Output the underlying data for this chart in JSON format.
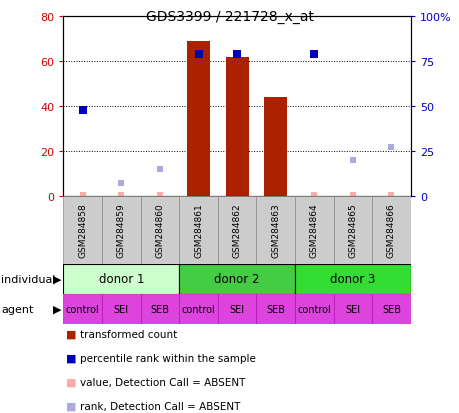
{
  "title": "GDS3399 / 221728_x_at",
  "samples": [
    "GSM284858",
    "GSM284859",
    "GSM284860",
    "GSM284861",
    "GSM284862",
    "GSM284863",
    "GSM284864",
    "GSM284865",
    "GSM284866"
  ],
  "bar_values": [
    0,
    0,
    0,
    69,
    62,
    44,
    0,
    0,
    0
  ],
  "bar_color": "#aa2200",
  "blue_values": [
    48,
    null,
    null,
    79,
    79,
    null,
    79,
    null,
    null
  ],
  "blue_color": "#0000bb",
  "pink_values": [
    0.5,
    0.5,
    0.5,
    null,
    null,
    null,
    0.5,
    0.5,
    0.5
  ],
  "pink_color": "#ffaaaa",
  "light_blue_values": [
    null,
    7,
    15,
    null,
    null,
    null,
    null,
    20,
    27
  ],
  "light_blue_color": "#aaaadd",
  "ylim_left": [
    0,
    80
  ],
  "ylim_right": [
    0,
    100
  ],
  "yticks_left": [
    0,
    20,
    40,
    60,
    80
  ],
  "yticks_right": [
    0,
    25,
    50,
    75,
    100
  ],
  "left_tick_labels": [
    "0",
    "20",
    "40",
    "60",
    "80"
  ],
  "right_tick_labels": [
    "0",
    "25",
    "50",
    "75",
    "100%"
  ],
  "left_color": "#cc0000",
  "right_color": "#0000cc",
  "donors": [
    {
      "label": "donor 1",
      "start": 0,
      "end": 3,
      "color": "#ccffcc"
    },
    {
      "label": "donor 2",
      "start": 3,
      "end": 6,
      "color": "#44cc44"
    },
    {
      "label": "donor 3",
      "start": 6,
      "end": 9,
      "color": "#33dd33"
    }
  ],
  "agents": [
    "control",
    "SEI",
    "SEB",
    "control",
    "SEI",
    "SEB",
    "control",
    "SEI",
    "SEB"
  ],
  "agent_color": "#dd44dd",
  "sample_bg_color": "#cccccc",
  "legend_items": [
    {
      "color": "#aa2200",
      "label": "transformed count"
    },
    {
      "color": "#0000bb",
      "label": "percentile rank within the sample"
    },
    {
      "color": "#ffaaaa",
      "label": "value, Detection Call = ABSENT"
    },
    {
      "color": "#aaaadd",
      "label": "rank, Detection Call = ABSENT"
    }
  ]
}
